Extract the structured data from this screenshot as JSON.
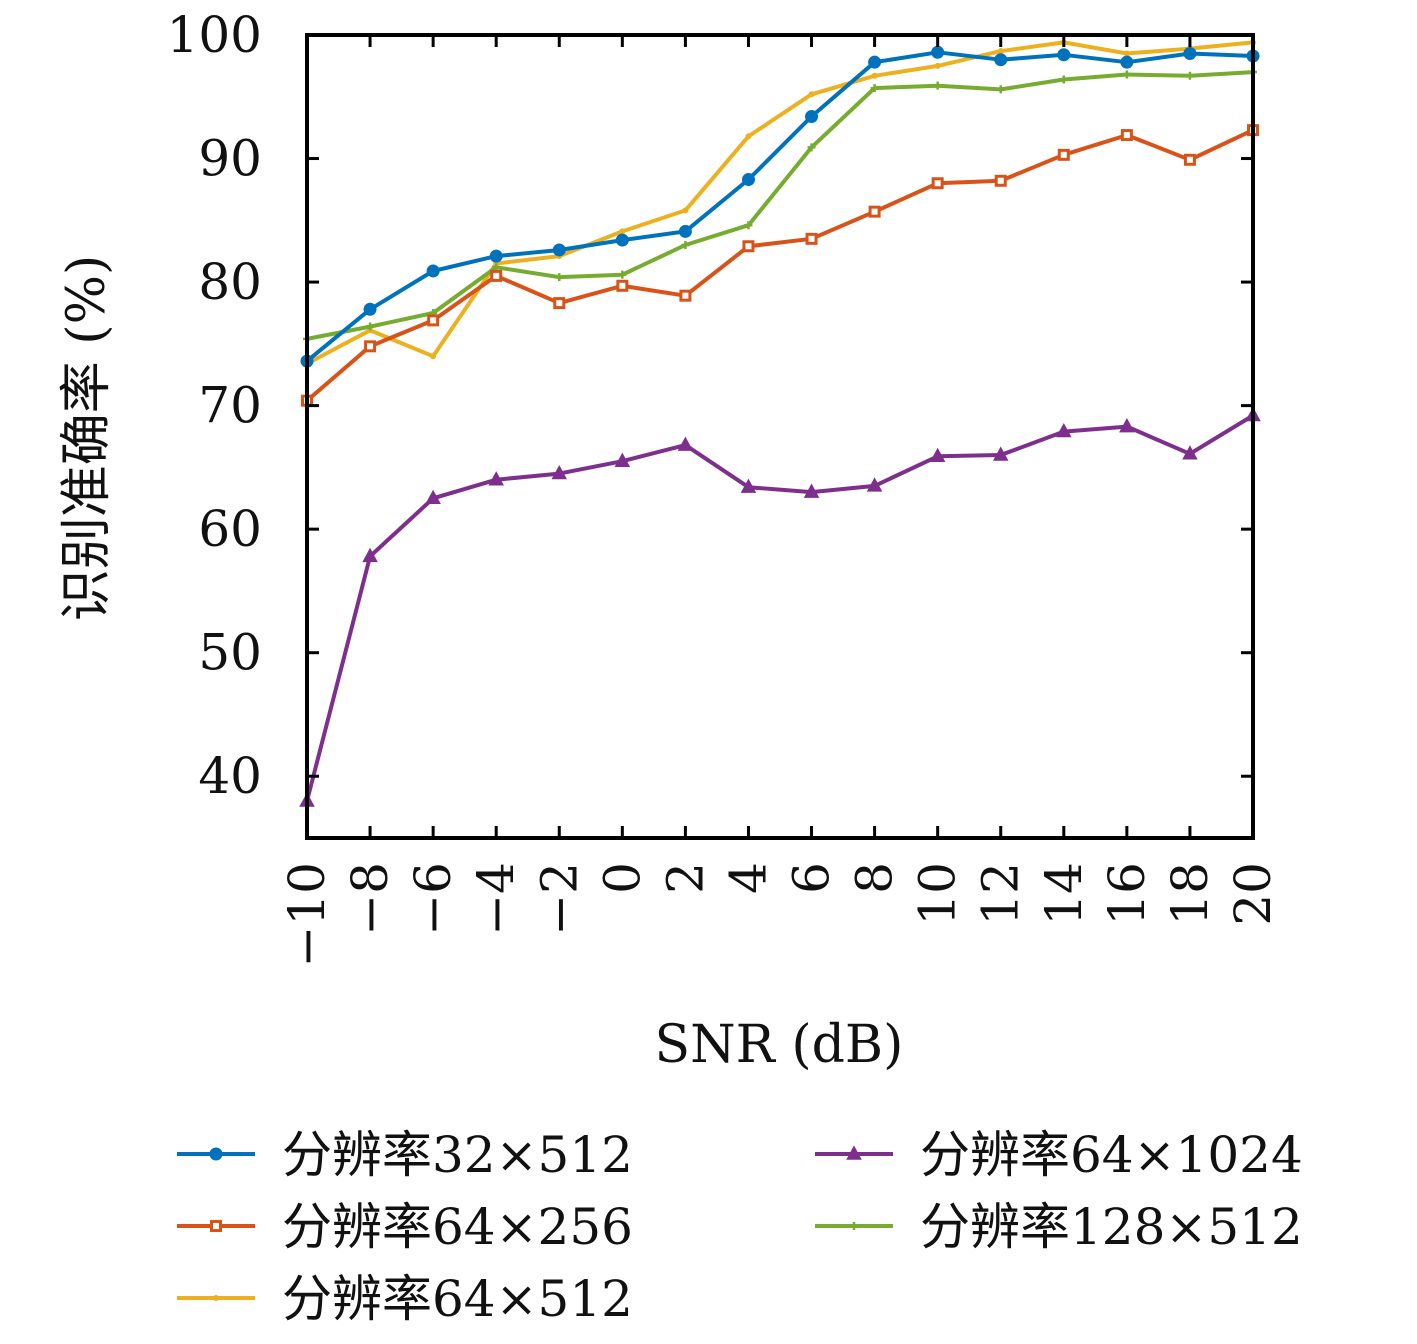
{
  "chart_data": {
    "type": "line",
    "xlabel": "SNR (dB)",
    "ylabel": "识别准确率 (%)",
    "x": [
      -10,
      -8,
      -6,
      -4,
      -2,
      0,
      2,
      4,
      6,
      8,
      10,
      12,
      14,
      16,
      18,
      20
    ],
    "x_tick_labels": [
      "−10",
      "−8",
      "−6",
      "−4",
      "−2",
      "0",
      "2",
      "4",
      "6",
      "8",
      "10",
      "12",
      "14",
      "16",
      "18",
      "20"
    ],
    "xlim": [
      -10,
      20
    ],
    "ylim": [
      35,
      100
    ],
    "y_ticks": [
      40,
      50,
      60,
      70,
      80,
      90,
      100
    ],
    "y_tick_labels": [
      "40",
      "50",
      "60",
      "70",
      "80",
      "90",
      "100"
    ],
    "grid": false,
    "legend_position": "bottom",
    "series": [
      {
        "name": "分辨率32×512",
        "color": "#0072BD",
        "marker": "circle",
        "values": [
          73.6,
          77.8,
          80.9,
          82.1,
          82.6,
          83.4,
          84.1,
          88.3,
          93.4,
          97.8,
          98.6,
          98.0,
          98.4,
          97.8,
          98.5,
          98.3
        ]
      },
      {
        "name": "分辨率64×256",
        "color": "#D95319",
        "marker": "square",
        "values": [
          70.4,
          74.8,
          76.9,
          80.5,
          78.3,
          79.7,
          78.9,
          82.9,
          83.5,
          85.7,
          88.0,
          88.2,
          90.3,
          91.9,
          89.9,
          92.3
        ]
      },
      {
        "name": "分辨率64×512",
        "color": "#EDB120",
        "marker": "point",
        "values": [
          73.4,
          76.1,
          74.0,
          81.5,
          82.1,
          84.1,
          85.8,
          91.8,
          95.2,
          96.7,
          97.5,
          98.7,
          99.4,
          98.5,
          98.9,
          99.4
        ]
      },
      {
        "name": "分辨率64×1024",
        "color": "#7E2F8E",
        "marker": "triangle",
        "values": [
          38.0,
          57.8,
          62.5,
          64.0,
          64.5,
          65.5,
          66.8,
          63.4,
          63.0,
          63.5,
          65.9,
          66.0,
          67.9,
          68.3,
          66.1,
          69.2
        ]
      },
      {
        "name": "分辨率128×512",
        "color": "#77AC30",
        "marker": "plus",
        "values": [
          75.4,
          76.4,
          77.5,
          81.2,
          80.4,
          80.6,
          83.0,
          84.6,
          90.9,
          95.7,
          95.9,
          95.6,
          96.4,
          96.8,
          96.7,
          97.0
        ]
      }
    ]
  }
}
